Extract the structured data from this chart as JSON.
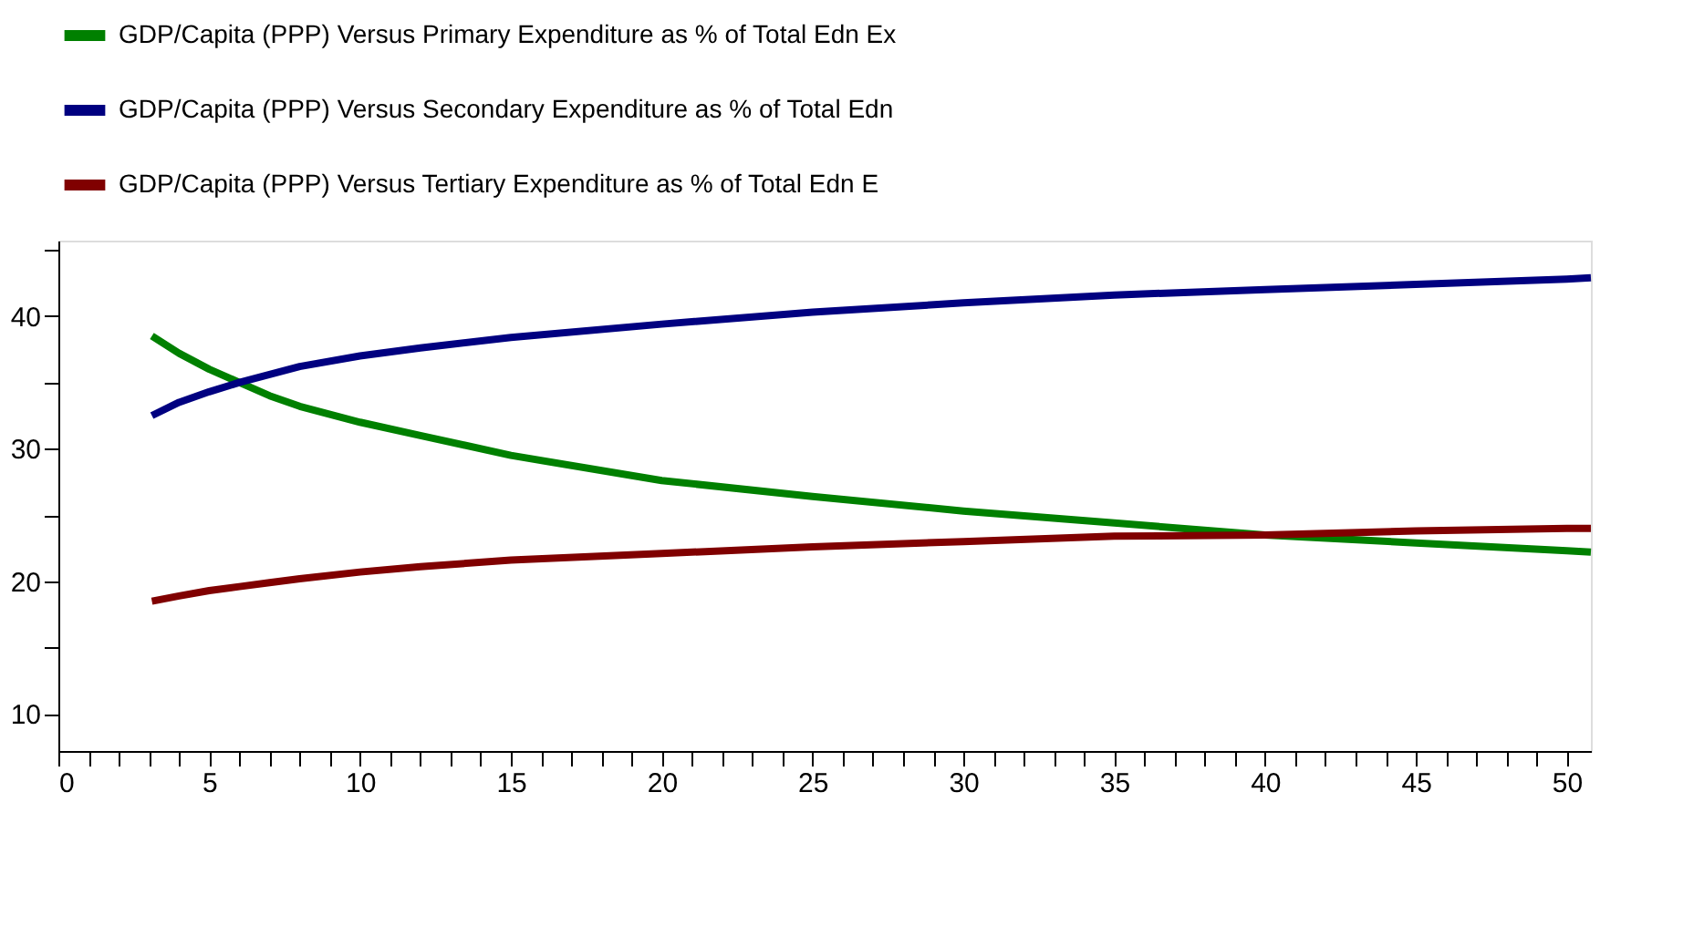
{
  "chart_data": {
    "type": "line",
    "x": [
      3.1,
      4,
      5,
      6,
      7,
      8,
      10,
      12,
      15,
      20,
      25,
      30,
      35,
      40,
      45,
      50,
      50.8
    ],
    "series": [
      {
        "name": "GDP/Capita (PPP) Versus Primary Expenditure as % of Total Edn Ex",
        "color": "#008000",
        "values": [
          38.5,
          37.2,
          36,
          35,
          34,
          33.2,
          32,
          31,
          29.5,
          27.6,
          26.4,
          25.3,
          24.4,
          23.5,
          22.9,
          22.3,
          22.2
        ]
      },
      {
        "name": "GDP/Capita (PPP) Versus Secondary Expenditure as % of Total Edn",
        "color": "#000080",
        "values": [
          32.5,
          33.5,
          34.3,
          35,
          35.6,
          36.2,
          37,
          37.6,
          38.4,
          39.4,
          40.3,
          41,
          41.6,
          42,
          42.4,
          42.8,
          42.9
        ]
      },
      {
        "name": "GDP/Capita (PPP) Versus Tertiary Expenditure as % of Total Edn E",
        "color": "#800000",
        "values": [
          18.5,
          18.9,
          19.3,
          19.6,
          19.9,
          20.2,
          20.7,
          21.1,
          21.6,
          22.1,
          22.6,
          23,
          23.4,
          23.5,
          23.8,
          24,
          24
        ]
      }
    ],
    "xlim": [
      0,
      50.8
    ],
    "ylim": [
      7.2,
      45.7
    ],
    "xticks": [
      0,
      {
        "value": 1,
        "label": null
      },
      {
        "value": 2,
        "label": null
      },
      {
        "value": 3,
        "label": null
      },
      {
        "value": 4,
        "label": null
      },
      5,
      {
        "value": 6,
        "label": null
      },
      {
        "value": 7,
        "label": null
      },
      {
        "value": 8,
        "label": null
      },
      {
        "value": 9,
        "label": null
      },
      10,
      {
        "value": 11,
        "label": null
      },
      {
        "value": 12,
        "label": null
      },
      {
        "value": 13,
        "label": null
      },
      {
        "value": 14,
        "label": null
      },
      15,
      {
        "value": 16,
        "label": null
      },
      {
        "value": 17,
        "label": null
      },
      {
        "value": 18,
        "label": null
      },
      {
        "value": 19,
        "label": null
      },
      20,
      {
        "value": 21,
        "label": null
      },
      {
        "value": 22,
        "label": null
      },
      {
        "value": 23,
        "label": null
      },
      {
        "value": 24,
        "label": null
      },
      25,
      {
        "value": 26,
        "label": null
      },
      {
        "value": 27,
        "label": null
      },
      {
        "value": 28,
        "label": null
      },
      {
        "value": 29,
        "label": null
      },
      30,
      {
        "value": 31,
        "label": null
      },
      {
        "value": 32,
        "label": null
      },
      {
        "value": 33,
        "label": null
      },
      {
        "value": 34,
        "label": null
      },
      35,
      {
        "value": 36,
        "label": null
      },
      {
        "value": 37,
        "label": null
      },
      {
        "value": 38,
        "label": null
      },
      {
        "value": 39,
        "label": null
      },
      40,
      {
        "value": 41,
        "label": null
      },
      {
        "value": 42,
        "label": null
      },
      {
        "value": 43,
        "label": null
      },
      {
        "value": 44,
        "label": null
      },
      45,
      {
        "value": 46,
        "label": null
      },
      {
        "value": 47,
        "label": null
      },
      {
        "value": 48,
        "label": null
      },
      {
        "value": 49,
        "label": null
      },
      50
    ],
    "yticks": [
      10,
      {
        "value": 15,
        "label": null
      },
      20,
      {
        "value": 25,
        "label": null
      },
      30,
      {
        "value": 35,
        "label": null
      },
      40,
      {
        "value": 45,
        "label": null
      }
    ],
    "legend": "top left",
    "grid": false,
    "marker": "none",
    "line_style": "solid"
  }
}
